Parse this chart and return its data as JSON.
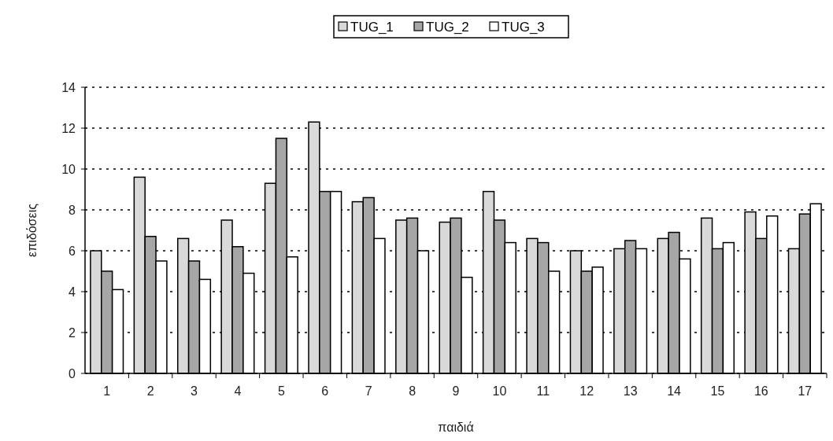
{
  "chart_data": {
    "type": "bar",
    "xlabel": "παιδιά",
    "ylabel": "επιδόσεις",
    "categories": [
      "1",
      "2",
      "3",
      "4",
      "5",
      "6",
      "7",
      "8",
      "9",
      "10",
      "11",
      "12",
      "13",
      "14",
      "15",
      "16",
      "17"
    ],
    "series": [
      {
        "name": "TUG_1",
        "color": "#d9d9d9",
        "values": [
          6.0,
          9.6,
          6.6,
          7.5,
          9.3,
          12.3,
          8.4,
          7.5,
          7.4,
          8.9,
          6.6,
          6.0,
          6.1,
          6.6,
          7.6,
          7.9,
          6.1
        ]
      },
      {
        "name": "TUG_2",
        "color": "#a6a6a6",
        "values": [
          5.0,
          6.7,
          5.5,
          6.2,
          11.5,
          8.9,
          8.6,
          7.6,
          7.6,
          7.5,
          6.4,
          5.0,
          6.5,
          6.9,
          6.1,
          6.6,
          7.8
        ]
      },
      {
        "name": "TUG_3",
        "color": "#ffffff",
        "values": [
          4.1,
          5.5,
          4.6,
          4.9,
          5.7,
          8.9,
          6.6,
          6.0,
          4.7,
          6.4,
          5.0,
          5.2,
          6.1,
          5.6,
          6.4,
          7.7,
          8.3
        ]
      }
    ],
    "ylim": [
      0,
      14
    ],
    "yticks": [
      0,
      2,
      4,
      6,
      8,
      10,
      12,
      14
    ],
    "grid": "y",
    "legend": "top"
  }
}
